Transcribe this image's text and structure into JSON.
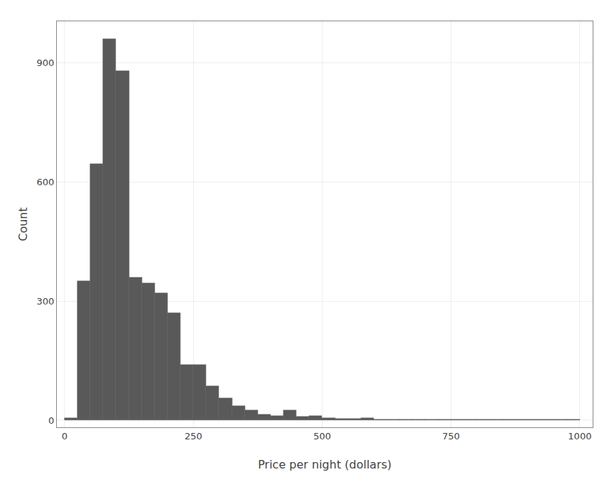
{
  "chart_data": {
    "type": "histogram",
    "bins": [
      0,
      25,
      50,
      75,
      100,
      125,
      150,
      175,
      200,
      225,
      250,
      275,
      300,
      325,
      350,
      375,
      400,
      425,
      450,
      475,
      500,
      525,
      550,
      575,
      600,
      625,
      650,
      675,
      700,
      725,
      750,
      775,
      800,
      825,
      850,
      875,
      900,
      925,
      950,
      975,
      1000
    ],
    "values": [
      5,
      350,
      645,
      960,
      880,
      360,
      345,
      320,
      270,
      140,
      140,
      85,
      55,
      35,
      25,
      15,
      10,
      25,
      8,
      10,
      6,
      4,
      3,
      5,
      2,
      1,
      2,
      1,
      1,
      1,
      1,
      1,
      1,
      1,
      1,
      1,
      1,
      1,
      1,
      1
    ],
    "color": "#595959",
    "xlabel": "Price per night (dollars)",
    "ylabel": "Count",
    "xlim": [
      -15,
      1025
    ],
    "ylim": [
      -18,
      1005
    ],
    "xticks": [
      0,
      250,
      500,
      750,
      1000
    ],
    "yticks": [
      0,
      300,
      600,
      900
    ],
    "grid": true
  }
}
